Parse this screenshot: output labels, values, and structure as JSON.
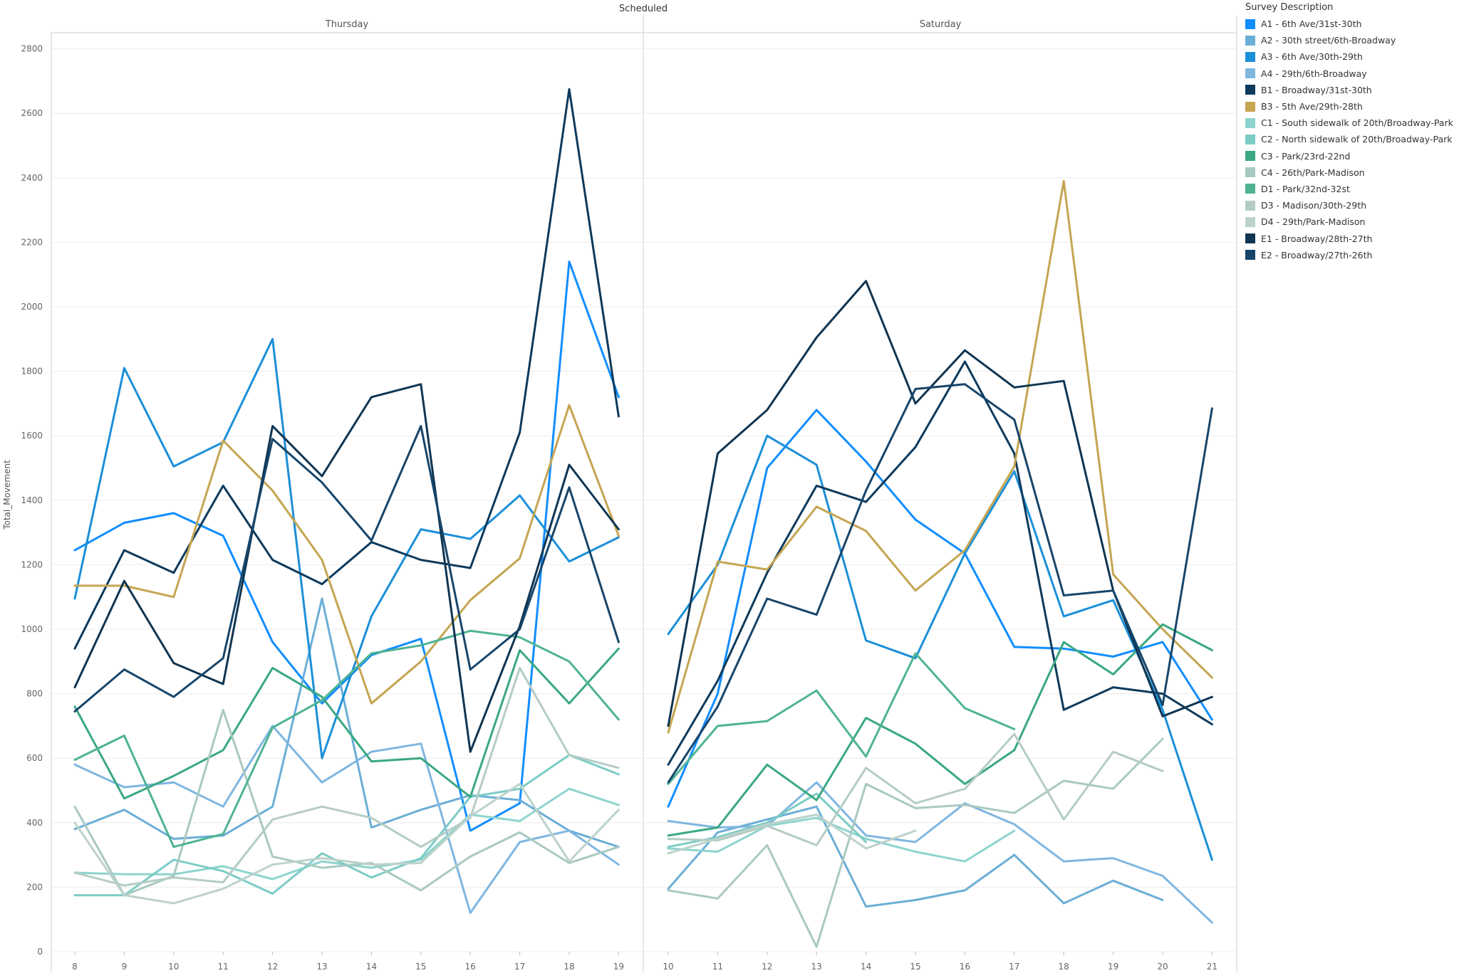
{
  "chart_data": {
    "type": "line",
    "title": "Scheduled",
    "ylabel": "Total_Movement",
    "ylim": [
      0,
      2850
    ],
    "yticks": [
      0,
      200,
      400,
      600,
      800,
      1000,
      1200,
      1400,
      1600,
      1800,
      2000,
      2200,
      2400,
      2600,
      2800
    ],
    "legend_title": "Survey Description",
    "grid": true,
    "legend_position": "right",
    "panels": [
      {
        "name": "Thursday",
        "x": [
          8,
          9,
          10,
          11,
          12,
          13,
          14,
          15,
          16,
          17,
          18,
          19
        ]
      },
      {
        "name": "Saturday",
        "x": [
          10,
          11,
          12,
          13,
          14,
          15,
          16,
          17,
          18,
          19,
          20,
          21
        ]
      }
    ],
    "series": [
      {
        "name": "A1 - 6th Ave/31st-30th",
        "color": "#118DFF",
        "thursday": [
          1245,
          1330,
          1360,
          1290,
          960,
          770,
          920,
          970,
          375,
          460,
          2140,
          1720
        ],
        "saturday": [
          450,
          800,
          1500,
          1680,
          1520,
          1340,
          1235,
          945,
          940,
          915,
          960,
          720
        ]
      },
      {
        "name": "A2 - 30th street/6th-Broadway",
        "color": "#6BAED6",
        "thursday": [
          380,
          440,
          350,
          360,
          450,
          1095,
          385,
          440,
          485,
          470,
          375,
          325
        ],
        "saturday": [
          195,
          370,
          410,
          450,
          140,
          160,
          190,
          300,
          150,
          220,
          160,
          null
        ]
      },
      {
        "name": "A3 - 6th Ave/30th-29th",
        "color": "#1B8FD8",
        "thursday": [
          1095,
          1810,
          1505,
          1580,
          1900,
          600,
          1040,
          1310,
          1280,
          1415,
          1210,
          1285
        ],
        "saturday": [
          985,
          1200,
          1600,
          1510,
          965,
          910,
          1235,
          1490,
          1040,
          1090,
          750,
          285
        ]
      },
      {
        "name": "A4 - 29th/6th-Broadway",
        "color": "#7FB6E0",
        "thursday": [
          580,
          510,
          525,
          450,
          700,
          525,
          620,
          645,
          120,
          340,
          375,
          270
        ],
        "saturday": [
          405,
          385,
          390,
          525,
          360,
          340,
          460,
          395,
          280,
          290,
          235,
          90
        ]
      },
      {
        "name": "B1 - Broadway/31st-30th",
        "color": "#0D3A5C",
        "thursday": [
          940,
          1245,
          1175,
          1445,
          1215,
          1140,
          1270,
          1215,
          1190,
          1610,
          2675,
          1660
        ],
        "saturday": [
          580,
          840,
          1175,
          1445,
          1395,
          1565,
          1830,
          1545,
          750,
          820,
          800,
          705
        ]
      },
      {
        "name": "B3 - 5th Ave/29th-28th",
        "color": "#C5A552",
        "thursday": [
          1135,
          1135,
          1100,
          1585,
          1430,
          1215,
          770,
          900,
          1090,
          1220,
          1695,
          1290
        ],
        "saturday": [
          680,
          1210,
          1185,
          1380,
          1305,
          1120,
          1245,
          1505,
          2390,
          1170,
          1000,
          850
        ]
      },
      {
        "name": "C1 - South sidewalk of 20th/Broadway-Park",
        "color": "#8ED4CE",
        "thursday": [
          245,
          240,
          240,
          265,
          225,
          280,
          260,
          285,
          425,
          405,
          505,
          455
        ],
        "saturday": [
          320,
          310,
          390,
          415,
          350,
          310,
          280,
          375,
          null,
          null,
          null,
          null
        ]
      },
      {
        "name": "C2 - North sidewalk of 20th/Broadway-Park",
        "color": "#7CCCC6",
        "thursday": [
          175,
          175,
          285,
          250,
          180,
          305,
          230,
          290,
          480,
          505,
          610,
          550
        ],
        "saturday": [
          325,
          355,
          400,
          490,
          340,
          null,
          null,
          null,
          null,
          null,
          null,
          null
        ]
      },
      {
        "name": "C3 - Park/23rd-22nd",
        "color": "#3AA882",
        "thursday": [
          760,
          475,
          545,
          625,
          880,
          790,
          590,
          600,
          480,
          935,
          770,
          940
        ],
        "saturday": [
          360,
          385,
          580,
          470,
          725,
          645,
          520,
          625,
          960,
          860,
          1015,
          935
        ]
      },
      {
        "name": "C4 - 26th/Park-Madison",
        "color": "#A9C9C1",
        "thursday": [
          450,
          175,
          235,
          750,
          295,
          260,
          275,
          190,
          295,
          370,
          275,
          325
        ],
        "saturday": [
          190,
          165,
          330,
          15,
          520,
          445,
          455,
          430,
          530,
          505,
          660,
          null
        ]
      },
      {
        "name": "D1 - Park/32nd-32st",
        "color": "#4FB393",
        "thursday": [
          595,
          670,
          325,
          365,
          695,
          780,
          925,
          950,
          995,
          975,
          900,
          720
        ],
        "saturday": [
          520,
          700,
          715,
          810,
          605,
          925,
          755,
          690,
          null,
          null,
          null,
          null
        ]
      },
      {
        "name": "D3 - Madison/30th-29th",
        "color": "#B5CCC5",
        "thursday": [
          245,
          205,
          230,
          215,
          410,
          450,
          415,
          325,
          415,
          880,
          610,
          570
        ],
        "saturday": [
          350,
          345,
          390,
          330,
          570,
          460,
          505,
          675,
          410,
          620,
          560,
          null
        ]
      },
      {
        "name": "D4 - 29th/Park-Madison",
        "color": "#BCD2CB",
        "thursday": [
          400,
          175,
          150,
          195,
          270,
          290,
          270,
          275,
          420,
          520,
          280,
          440
        ],
        "saturday": [
          305,
          350,
          395,
          425,
          320,
          375,
          null,
          null,
          null,
          null,
          null,
          null
        ]
      },
      {
        "name": "E1 - Broadway/28th-27th",
        "color": "#0F3552",
        "thursday": [
          820,
          1150,
          895,
          830,
          1630,
          1475,
          1720,
          1760,
          620,
          1010,
          1510,
          1310
        ],
        "saturday": [
          700,
          1545,
          1680,
          1905,
          2080,
          1700,
          1865,
          1750,
          1770,
          1120,
          730,
          790
        ]
      },
      {
        "name": "E2 - Broadway/27th-26th",
        "color": "#17456A",
        "thursday": [
          745,
          875,
          790,
          910,
          1590,
          1455,
          1275,
          1630,
          875,
          1000,
          1440,
          960
        ],
        "saturday": [
          525,
          760,
          1095,
          1045,
          1430,
          1745,
          1760,
          1650,
          1105,
          1120,
          765,
          1685
        ]
      }
    ]
  }
}
